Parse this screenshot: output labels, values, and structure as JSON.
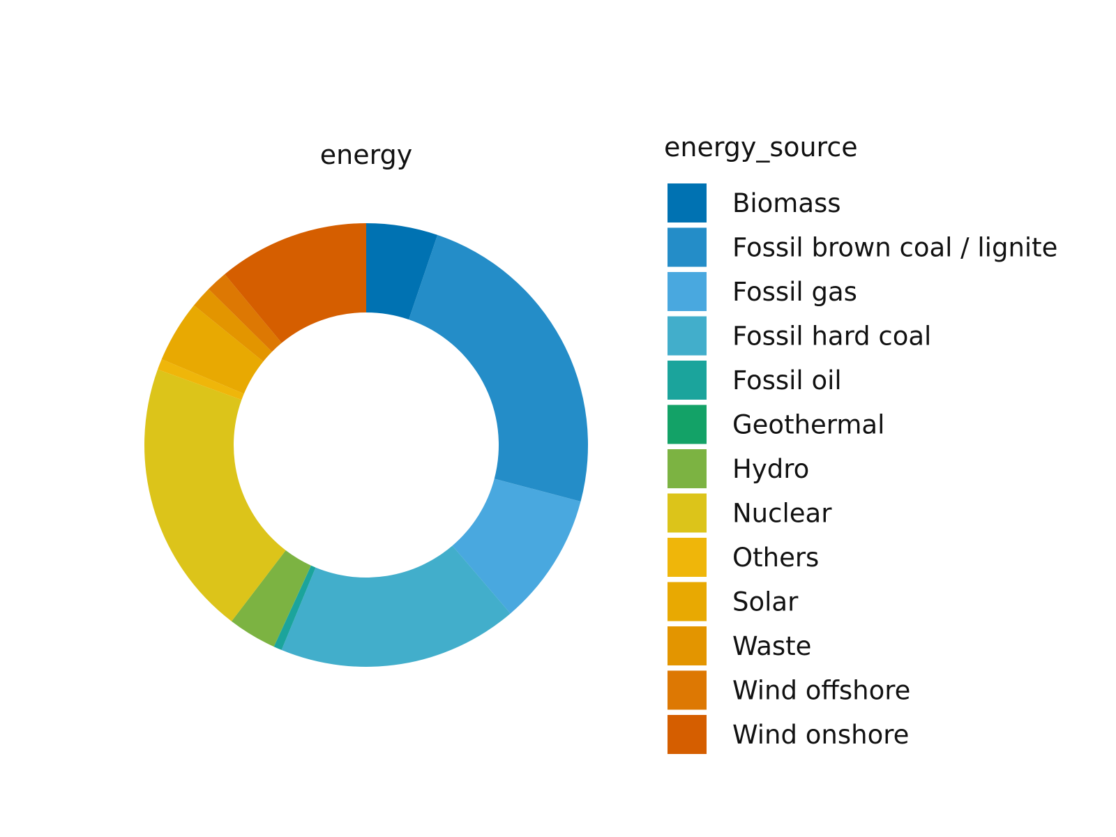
{
  "chart_data": {
    "type": "pie",
    "donut": true,
    "title": "energy",
    "legend": {
      "title": "energy_source",
      "placement": "right"
    },
    "categories": [
      "Biomass",
      "Fossil brown coal / lignite",
      "Fossil gas",
      "Fossil hard coal",
      "Fossil oil",
      "Geothermal",
      "Hydro",
      "Nuclear",
      "Others",
      "Solar",
      "Waste",
      "Wind offshore",
      "Wind onshore"
    ],
    "values": [
      5.3,
      24.3,
      9.8,
      17.8,
      0.6,
      0.02,
      3.6,
      20.5,
      0.8,
      4.6,
      1.6,
      1.6,
      11.2
    ],
    "colors": [
      "#0072b2",
      "#248dc8",
      "#49a8df",
      "#42aecb",
      "#1ba49c",
      "#13a267",
      "#7cb342",
      "#dcc41a",
      "#efb60a",
      "#e8a902",
      "#e39500",
      "#dd7803",
      "#d55e00"
    ]
  }
}
